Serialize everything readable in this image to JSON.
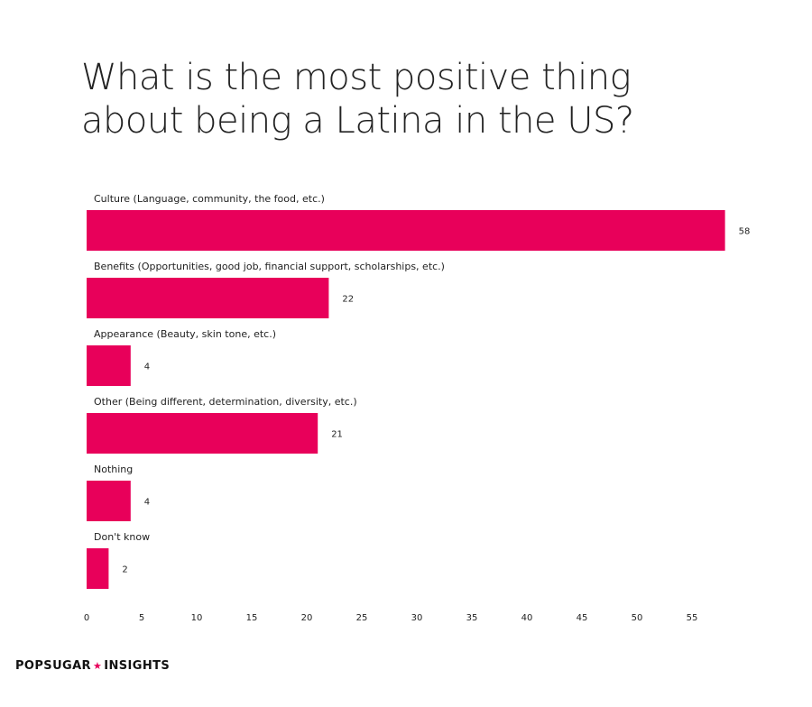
{
  "title_lines": [
    "What is the most positive thing",
    "about being a Latina in the US?"
  ],
  "brand": {
    "left": "POPSUGAR",
    "star": "★",
    "right": "INSIGHTS"
  },
  "colors": {
    "bar": "#e8005a",
    "text": "#222222",
    "star": "#e8005a"
  },
  "chart_data": {
    "type": "bar",
    "orientation": "horizontal",
    "title": "What is the most positive thing about being a Latina in the US?",
    "categories": [
      "Culture (Language, community, the food, etc.)",
      "Benefits (Opportunities, good job, financial support, scholarships, etc.)",
      "Appearance (Beauty, skin tone, etc.)",
      "Other (Being different, determination, diversity, etc.)",
      "Nothing",
      "Don't know"
    ],
    "values": [
      58,
      22,
      4,
      21,
      4,
      2
    ],
    "xticks": [
      0,
      5,
      10,
      15,
      20,
      25,
      30,
      35,
      40,
      45,
      50,
      55
    ],
    "xlim": [
      0,
      58
    ],
    "grid": false,
    "data_labels": true
  }
}
